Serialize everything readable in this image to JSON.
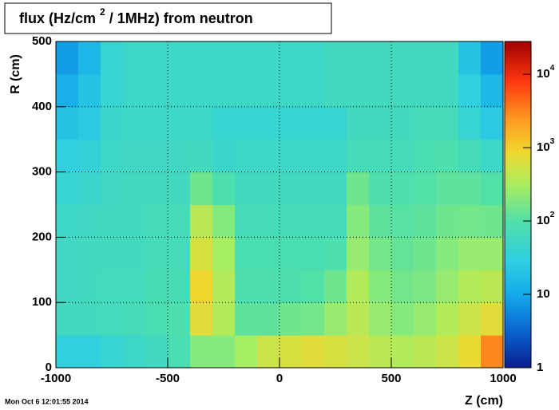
{
  "chart_data": {
    "type": "heatmap",
    "title": [
      "flux (Hz/cm",
      "2",
      "/ 1MHz) from   neutron"
    ],
    "x_label": "Z (cm)",
    "y_label": "R (cm)",
    "timestamp": "Mon Oct  6 12:01:55 2014",
    "xlim": [
      -1000,
      1000
    ],
    "xticks": [
      -1000,
      -500,
      0,
      500,
      1000
    ],
    "ylim": [
      0,
      500
    ],
    "yticks": [
      0,
      100,
      200,
      300,
      400,
      500
    ],
    "grid": true,
    "zlog": true,
    "zlim": [
      1,
      28000
    ],
    "zticks": [
      1,
      10,
      {
        "value": 100,
        "label": "10",
        "superscript": "2"
      },
      {
        "value": 1000,
        "label": "10",
        "superscript": "3"
      },
      {
        "value": 10000,
        "label": "10",
        "superscript": "4"
      }
    ],
    "xbins": [
      -1000,
      -900,
      -800,
      -700,
      -600,
      -500,
      -400,
      -300,
      -200,
      -100,
      0,
      100,
      200,
      300,
      400,
      500,
      600,
      700,
      800,
      900,
      1000
    ],
    "ybins": [
      0,
      50,
      100,
      150,
      200,
      250,
      300,
      350,
      400,
      450,
      500
    ],
    "z": [
      [
        30,
        30,
        40,
        50,
        60,
        80,
        200,
        200,
        300,
        500,
        600,
        700,
        600,
        500,
        400,
        350,
        400,
        500,
        800,
        3000
      ],
      [
        60,
        60,
        65,
        70,
        80,
        90,
        700,
        350,
        120,
        120,
        150,
        160,
        250,
        400,
        250,
        200,
        250,
        350,
        500,
        700
      ],
      [
        55,
        60,
        65,
        65,
        75,
        75,
        900,
        350,
        90,
        90,
        90,
        100,
        150,
        350,
        200,
        160,
        180,
        250,
        350,
        400
      ],
      [
        55,
        60,
        60,
        60,
        70,
        70,
        600,
        300,
        80,
        80,
        80,
        80,
        90,
        250,
        160,
        130,
        150,
        200,
        250,
        250
      ],
      [
        50,
        55,
        60,
        60,
        70,
        70,
        400,
        200,
        70,
        70,
        70,
        70,
        70,
        200,
        120,
        110,
        120,
        150,
        160,
        150
      ],
      [
        40,
        45,
        55,
        60,
        60,
        60,
        150,
        90,
        60,
        60,
        60,
        60,
        60,
        150,
        90,
        90,
        100,
        120,
        120,
        100
      ],
      [
        30,
        35,
        50,
        55,
        55,
        55,
        60,
        45,
        50,
        50,
        50,
        50,
        50,
        70,
        70,
        70,
        80,
        90,
        70,
        50
      ],
      [
        20,
        25,
        45,
        50,
        50,
        50,
        50,
        40,
        40,
        40,
        40,
        40,
        40,
        60,
        60,
        60,
        70,
        70,
        40,
        25
      ],
      [
        12,
        20,
        40,
        50,
        50,
        50,
        50,
        50,
        50,
        50,
        50,
        50,
        60,
        60,
        60,
        60,
        60,
        60,
        30,
        15
      ],
      [
        8,
        15,
        40,
        50,
        50,
        50,
        50,
        50,
        50,
        50,
        50,
        50,
        60,
        60,
        60,
        60,
        60,
        60,
        20,
        8
      ]
    ]
  }
}
